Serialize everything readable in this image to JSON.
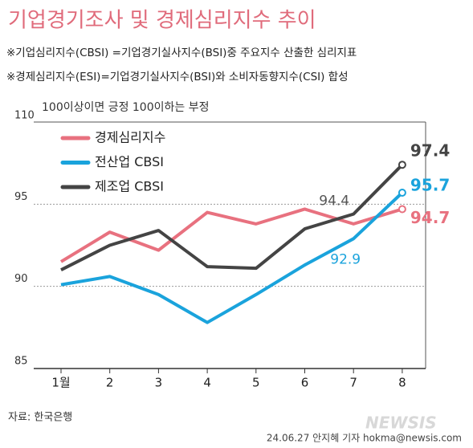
{
  "chart_data": {
    "type": "line",
    "title": "기업경기조사 및 경제심리지수 추이",
    "notes": [
      "※기업심리지수(CBSI) =기업경기실사지수(BSI)중 주요지수 산출한 심리지표",
      "※경제심리지수(ESI)=기업경기실사지수(BSI)와 소비자동향지수(CSI) 합성"
    ],
    "subtitle": "100이상이면 긍정 100이하는 부정",
    "source": "자료: 한국은행",
    "credit": "24.06.27 안지혜 기자 hokma@newsis.com",
    "watermark": "NEWSIS",
    "categories": [
      "1월",
      "2",
      "3",
      "4",
      "5",
      "6",
      "7",
      "8"
    ],
    "ylim": [
      85,
      100
    ],
    "yticks": [
      85,
      90,
      95
    ],
    "top_tick_label": "110",
    "series": [
      {
        "name": "경제심리지수",
        "color": "#e8717f",
        "values": [
          91.5,
          93.3,
          92.2,
          94.5,
          93.8,
          94.7,
          93.8,
          94.7
        ],
        "value_labels": [
          null,
          null,
          null,
          null,
          null,
          null,
          null,
          "94.7"
        ]
      },
      {
        "name": "전산업 CBSI",
        "color": "#1aa3dc",
        "values": [
          90.1,
          90.6,
          89.5,
          87.8,
          89.5,
          91.3,
          92.9,
          95.7
        ],
        "value_labels": [
          null,
          null,
          null,
          null,
          null,
          null,
          "92.9",
          "95.7"
        ]
      },
      {
        "name": "제조업 CBSI",
        "color": "#444444",
        "values": [
          91.0,
          92.5,
          93.4,
          91.2,
          91.1,
          93.5,
          94.4,
          97.4
        ],
        "value_labels": [
          null,
          null,
          null,
          null,
          null,
          null,
          "94.4",
          "97.4"
        ]
      }
    ]
  }
}
